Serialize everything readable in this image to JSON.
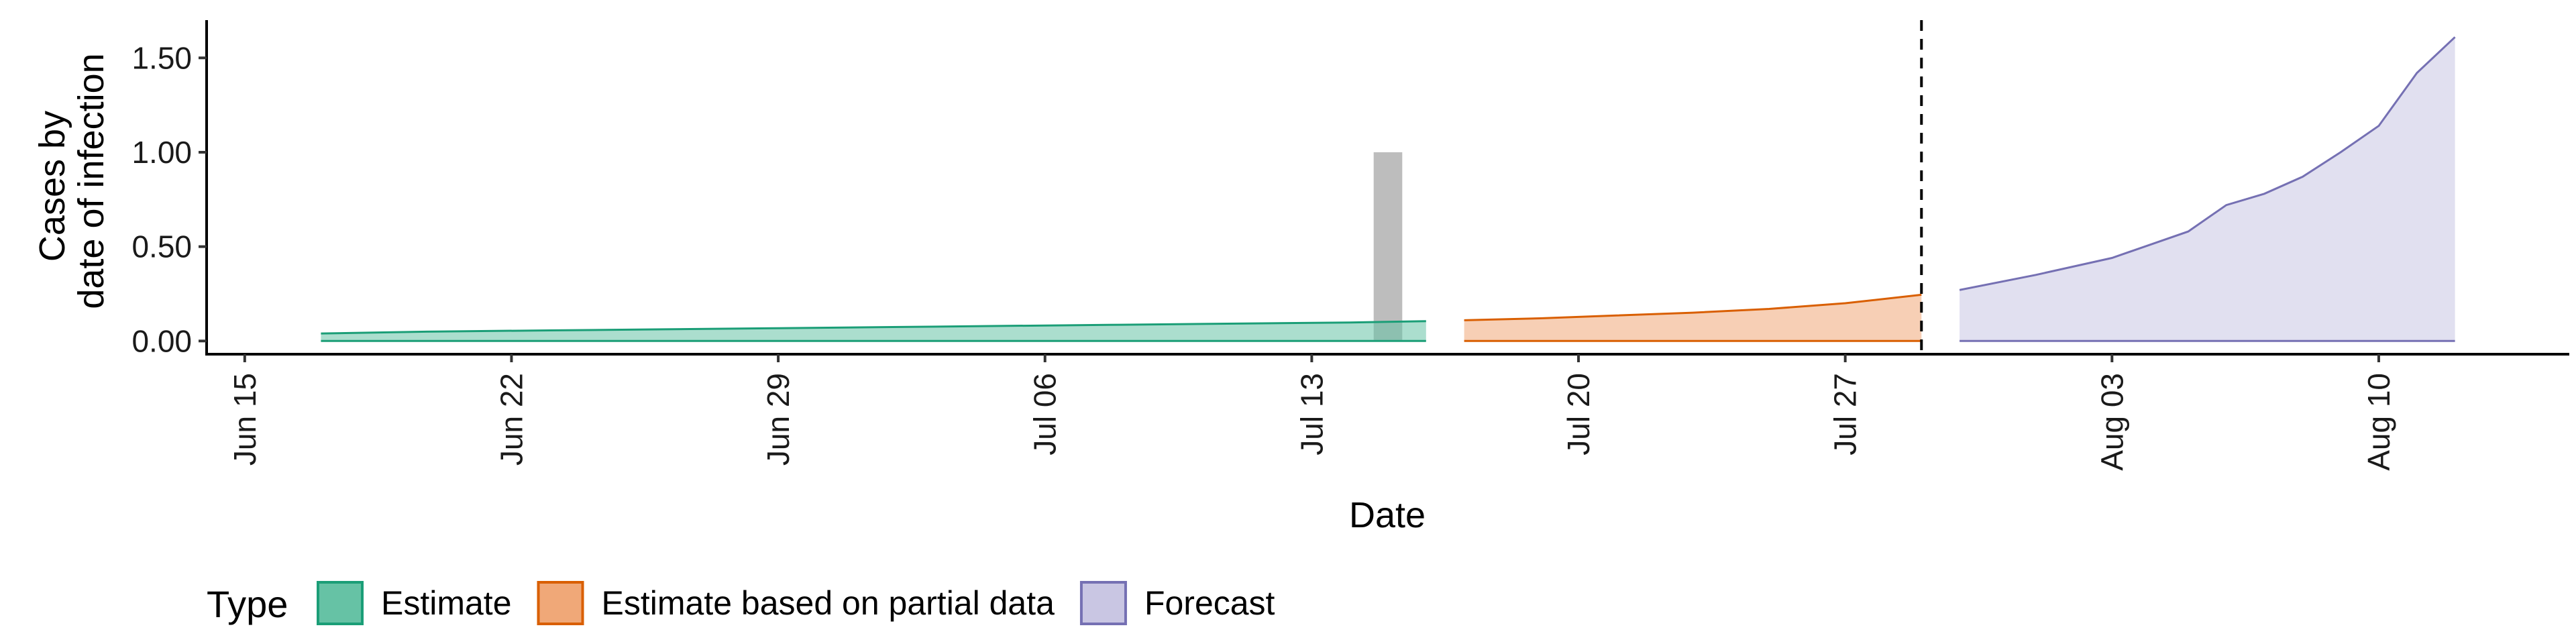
{
  "chart_data": {
    "type": "area",
    "xlabel": "Date",
    "ylabel_lines": [
      "Cases by",
      "date of infection"
    ],
    "x_tick_labels": [
      {
        "date": "2020-06-15",
        "label": "Jun 15"
      },
      {
        "date": "2020-06-22",
        "label": "Jun 22"
      },
      {
        "date": "2020-06-29",
        "label": "Jun 29"
      },
      {
        "date": "2020-07-06",
        "label": "Jul 06"
      },
      {
        "date": "2020-07-13",
        "label": "Jul 13"
      },
      {
        "date": "2020-07-20",
        "label": "Jul 20"
      },
      {
        "date": "2020-07-27",
        "label": "Jul 27"
      },
      {
        "date": "2020-08-03",
        "label": "Aug 03"
      },
      {
        "date": "2020-08-10",
        "label": "Aug 10"
      }
    ],
    "xlim": [
      "2020-06-14",
      "2020-08-15"
    ],
    "ylim": [
      -0.07,
      1.7
    ],
    "y_ticks": [
      {
        "value": 0,
        "label": "0.00"
      },
      {
        "value": 0.5,
        "label": "0.50"
      },
      {
        "value": 1.0,
        "label": "1.00"
      },
      {
        "value": 1.5,
        "label": "1.50"
      }
    ],
    "grid": false,
    "legend_position": "bottom-left",
    "legend_title": "Type",
    "vline_date": "2020-07-29",
    "reported_cases": [
      {
        "date": "2020-07-15",
        "value": 1.0
      }
    ],
    "series": [
      {
        "name": "Estimate",
        "key": "estimate",
        "color": "#1b9e77",
        "fill": "#66c2a5",
        "dates": [
          "2020-06-17",
          "2020-06-20",
          "2020-06-23",
          "2020-06-26",
          "2020-06-29",
          "2020-07-02",
          "2020-07-05",
          "2020-07-08",
          "2020-07-11",
          "2020-07-14",
          "2020-07-16"
        ],
        "upper": [
          0.04,
          0.05,
          0.056,
          0.062,
          0.068,
          0.074,
          0.08,
          0.086,
          0.092,
          0.098,
          0.105
        ],
        "lower": [
          0,
          0,
          0,
          0,
          0,
          0,
          0,
          0,
          0,
          0,
          0
        ]
      },
      {
        "name": "Estimate based on partial data",
        "key": "partial",
        "color": "#d95f02",
        "fill": "#f0a878",
        "dates": [
          "2020-07-17",
          "2020-07-19",
          "2020-07-21",
          "2020-07-23",
          "2020-07-25",
          "2020-07-27",
          "2020-07-29"
        ],
        "upper": [
          0.11,
          0.12,
          0.135,
          0.15,
          0.17,
          0.2,
          0.245
        ],
        "lower": [
          0,
          0,
          0,
          0,
          0,
          0,
          0
        ]
      },
      {
        "name": "Forecast",
        "key": "forecast",
        "color": "#7570b3",
        "fill": "#c9c6e3",
        "dates": [
          "2020-07-30",
          "2020-08-01",
          "2020-08-03",
          "2020-08-04",
          "2020-08-05",
          "2020-08-06",
          "2020-08-07",
          "2020-08-08",
          "2020-08-09",
          "2020-08-10",
          "2020-08-11",
          "2020-08-12"
        ],
        "upper": [
          0.27,
          0.35,
          0.44,
          0.51,
          0.58,
          0.72,
          0.78,
          0.87,
          1.0,
          1.14,
          1.42,
          1.61
        ],
        "lower": [
          0,
          0,
          0,
          0,
          0,
          0,
          0,
          0,
          0,
          0,
          0,
          0
        ]
      }
    ]
  }
}
